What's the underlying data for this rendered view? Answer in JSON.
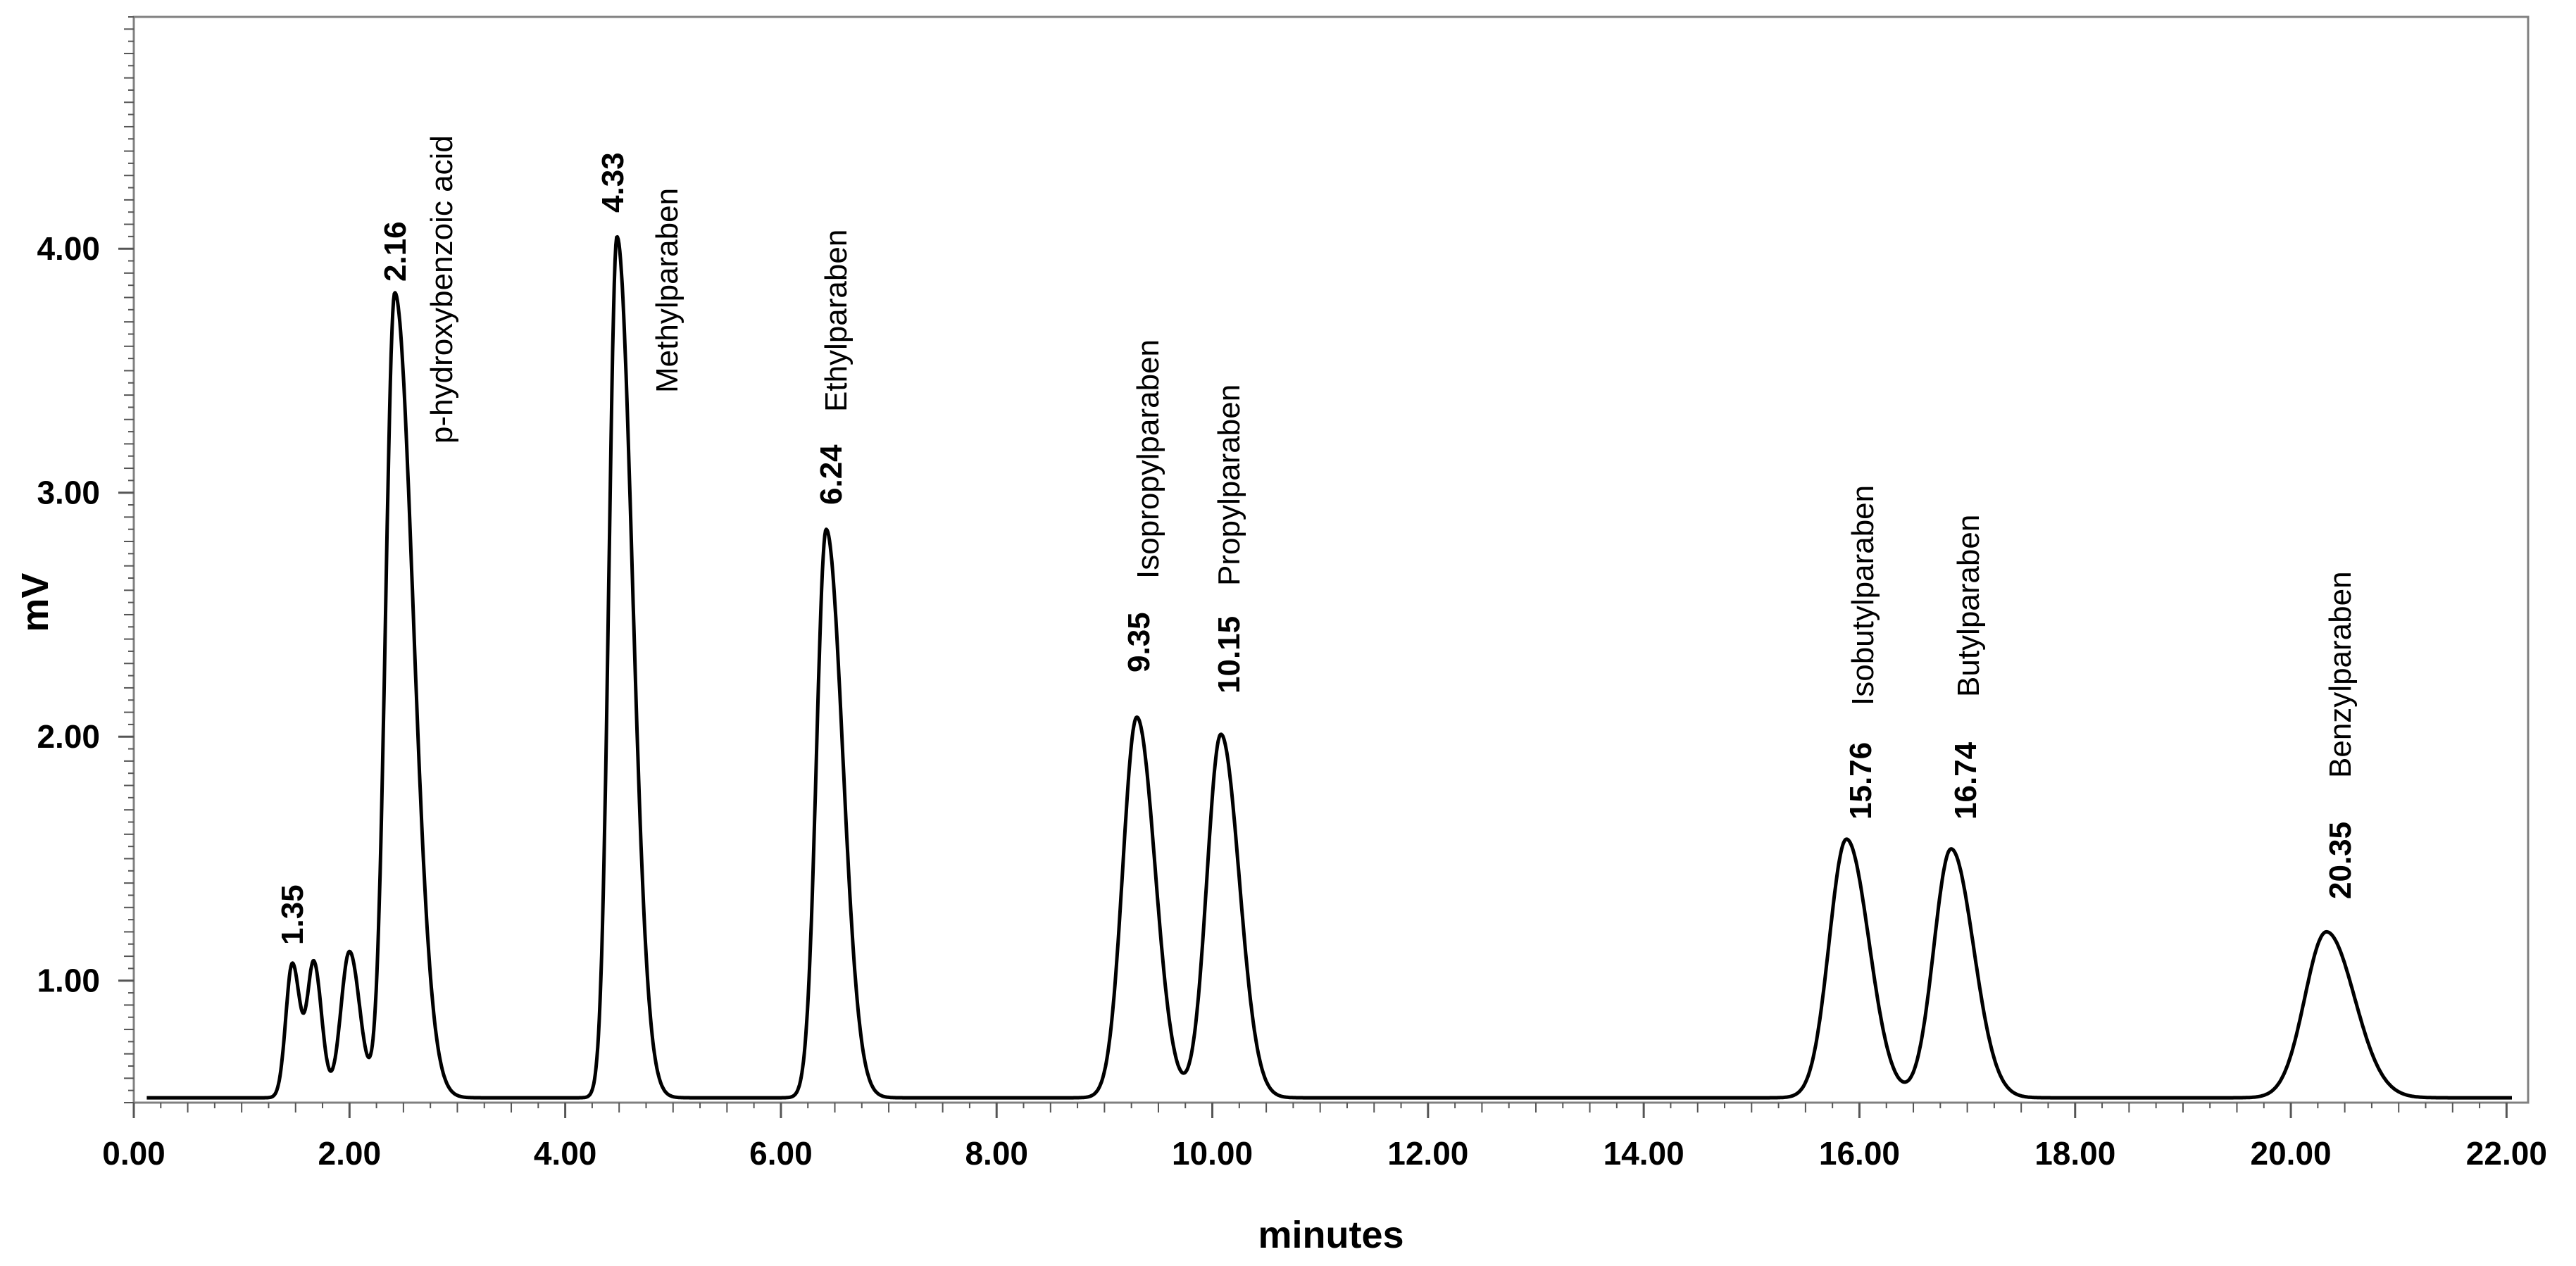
{
  "chart_data": {
    "type": "line",
    "title": "",
    "xlabel": "minutes",
    "ylabel": "mV",
    "xlim": [
      0,
      22.2
    ],
    "ylim": [
      0.5,
      4.95
    ],
    "baseline": 0.52,
    "x_ticks": [
      "0.00",
      "2.00",
      "4.00",
      "6.00",
      "8.00",
      "10.00",
      "12.00",
      "14.00",
      "16.00",
      "18.00",
      "20.00",
      "22.00"
    ],
    "x_tick_values": [
      0,
      2,
      4,
      6,
      8,
      10,
      12,
      14,
      16,
      18,
      20,
      22
    ],
    "y_ticks": [
      "1.00",
      "2.00",
      "3.00",
      "4.00"
    ],
    "y_tick_values": [
      1,
      2,
      3,
      4
    ],
    "peaks": [
      {
        "rt": 1.47,
        "height": 1.07,
        "sigma": 0.06,
        "tail": 1.2
      },
      {
        "rt": 1.67,
        "height": 1.07,
        "sigma": 0.06,
        "tail": 1.2
      },
      {
        "rt": 2.0,
        "height": 1.12,
        "sigma": 0.08,
        "tail": 1.2
      },
      {
        "rt": 2.42,
        "height": 3.82,
        "sigma": 0.085,
        "tail": 2.0
      },
      {
        "rt": 4.48,
        "height": 4.05,
        "sigma": 0.075,
        "tail": 1.9
      },
      {
        "rt": 6.42,
        "height": 2.85,
        "sigma": 0.09,
        "tail": 1.7
      },
      {
        "rt": 9.3,
        "height": 2.08,
        "sigma": 0.13,
        "tail": 1.3
      },
      {
        "rt": 10.08,
        "height": 2.01,
        "sigma": 0.13,
        "tail": 1.3
      },
      {
        "rt": 15.88,
        "height": 1.58,
        "sigma": 0.16,
        "tail": 1.3
      },
      {
        "rt": 16.85,
        "height": 1.54,
        "sigma": 0.16,
        "tail": 1.3
      },
      {
        "rt": 20.33,
        "height": 1.2,
        "sigma": 0.2,
        "tail": 1.3
      }
    ],
    "annotations": [
      {
        "rt_label": "1.35",
        "name": ""
      },
      {
        "rt_label": "2.16",
        "name": "p-hydroxybenzoic acid"
      },
      {
        "rt_label": "4.33",
        "name": "Methylparaben"
      },
      {
        "rt_label": "6.24",
        "name": "Ethylparaben"
      },
      {
        "rt_label": "9.35",
        "name": "Isopropylparaben"
      },
      {
        "rt_label": "10.15",
        "name": "Propylparaben"
      },
      {
        "rt_label": "15.76",
        "name": "Isobutylparaben"
      },
      {
        "rt_label": "16.74",
        "name": "Butylparaben"
      },
      {
        "rt_label": "20.35",
        "name": "Benzylparaben"
      }
    ]
  }
}
